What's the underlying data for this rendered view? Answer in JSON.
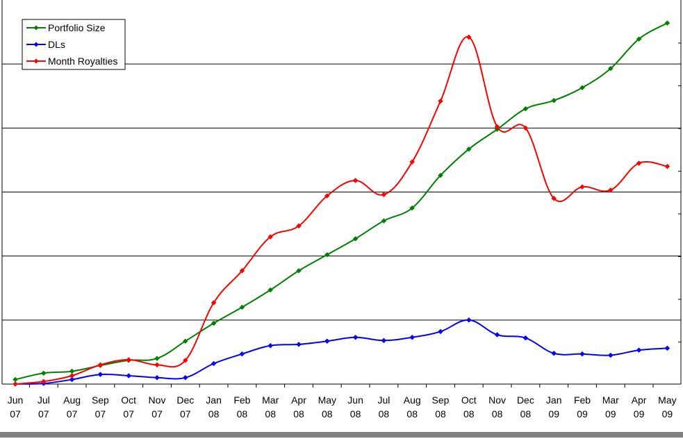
{
  "chart_data": {
    "type": "line",
    "title": "",
    "xlabel": "",
    "ylabel": "",
    "categories": [
      [
        "Jun",
        "07"
      ],
      [
        "Jul",
        "07"
      ],
      [
        "Aug",
        "07"
      ],
      [
        "Sep",
        "07"
      ],
      [
        "Oct",
        "07"
      ],
      [
        "Nov",
        "07"
      ],
      [
        "Dec",
        "07"
      ],
      [
        "Jan",
        "08"
      ],
      [
        "Feb",
        "08"
      ],
      [
        "Mar",
        "08"
      ],
      [
        "Apr",
        "08"
      ],
      [
        "May",
        "08"
      ],
      [
        "Jun",
        "08"
      ],
      [
        "Jul",
        "08"
      ],
      [
        "Aug",
        "08"
      ],
      [
        "Sep",
        "08"
      ],
      [
        "Oct",
        "08"
      ],
      [
        "Nov",
        "08"
      ],
      [
        "Dec",
        "08"
      ],
      [
        "Jan",
        "09"
      ],
      [
        "Feb",
        "09"
      ],
      [
        "Mar",
        "09"
      ],
      [
        "Apr",
        "09"
      ],
      [
        "May",
        "09"
      ]
    ],
    "ylim": [
      0,
      6
    ],
    "grid": true,
    "legend_position": "top-left",
    "series": [
      {
        "name": "Portfolio Size",
        "color": "#008000",
        "values": [
          0.07,
          0.17,
          0.2,
          0.29,
          0.37,
          0.4,
          0.67,
          0.95,
          1.2,
          1.47,
          1.77,
          2.02,
          2.27,
          2.55,
          2.75,
          3.26,
          3.67,
          3.98,
          4.3,
          4.43,
          4.63,
          4.93,
          5.39,
          5.64
        ]
      },
      {
        "name": "DLs",
        "color": "#0000ff",
        "values": [
          0.0,
          0.01,
          0.07,
          0.15,
          0.13,
          0.1,
          0.1,
          0.32,
          0.47,
          0.6,
          0.62,
          0.67,
          0.73,
          0.68,
          0.73,
          0.82,
          1.0,
          0.77,
          0.72,
          0.48,
          0.47,
          0.45,
          0.53,
          0.56
        ]
      },
      {
        "name": "Month Royalties",
        "color": "#ff0000",
        "values": [
          0.0,
          0.04,
          0.13,
          0.3,
          0.38,
          0.3,
          0.37,
          1.27,
          1.77,
          2.3,
          2.47,
          2.94,
          3.18,
          2.96,
          3.47,
          4.42,
          5.42,
          4.02,
          4.0,
          2.9,
          3.08,
          3.03,
          3.45,
          3.4
        ]
      }
    ]
  }
}
